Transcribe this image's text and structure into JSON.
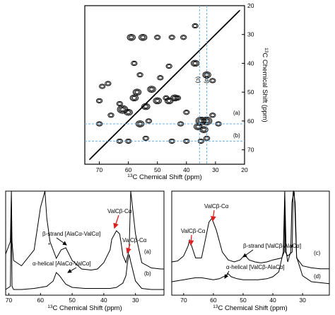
{
  "chart_data": [
    {
      "type": "heatmap",
      "xlabel": "13C Chemical Shift (ppm)",
      "ylabel": "13C Chemical Shift (ppm)",
      "xlim": [
        75,
        20
      ],
      "ylim": [
        20,
        75
      ],
      "x_ticks": [
        "70",
        "60",
        "50",
        "40",
        "30",
        "20"
      ],
      "y_ticks": [
        "20",
        "30",
        "40",
        "50",
        "60",
        "70"
      ],
      "slices": [
        {
          "label": "(a)",
          "axis": "y",
          "value": 61
        },
        {
          "label": "(b)",
          "axis": "y",
          "value": 67
        },
        {
          "label": "(c)",
          "axis": "x",
          "value": 35.5
        },
        {
          "label": "(d)",
          "axis": "x",
          "value": 33
        }
      ]
    },
    {
      "type": "line",
      "xlabel": "13C Chemical Shift (ppm)",
      "xlim": [
        71,
        21
      ],
      "x_ticks": [
        "70",
        "60",
        "50",
        "40",
        "30"
      ],
      "series": [
        {
          "name": "(a)",
          "x": [
            71,
            69.5,
            69.2,
            69,
            68.5,
            66,
            62,
            60,
            58.6,
            58,
            57,
            55,
            53.5,
            52,
            50,
            47,
            44,
            42,
            40,
            38,
            37.5,
            36,
            35,
            34.5,
            34,
            33,
            32,
            31.5,
            30,
            28,
            25,
            22,
            21
          ],
          "y": [
            0.26,
            0.38,
            0.9,
            0.38,
            0.2,
            0.15,
            0.3,
            0.7,
            0.9,
            0.6,
            0.38,
            0.22,
            0.3,
            0.32,
            0.2,
            0.12,
            0.11,
            0.12,
            0.18,
            0.3,
            0.4,
            0.48,
            0.45,
            0.36,
            0.25,
            0.18,
            0.3,
            0.9,
            0.45,
            0.18,
            0.13,
            0.12,
            0.12
          ]
        },
        {
          "name": "(b)",
          "x": [
            71,
            69.5,
            69.2,
            69,
            68.5,
            66,
            62,
            58,
            56,
            55,
            54,
            52,
            50,
            46,
            42,
            38,
            36,
            34,
            33,
            32.5,
            32,
            31.5,
            30,
            28,
            25,
            22,
            21
          ],
          "y": [
            0.02,
            0.05,
            0.85,
            0.05,
            0.02,
            0.02,
            0.03,
            0.05,
            0.1,
            0.18,
            0.15,
            0.07,
            0.04,
            0.03,
            0.03,
            0.03,
            0.04,
            0.08,
            0.15,
            0.28,
            0.35,
            0.28,
            0.1,
            0.03,
            0.02,
            0.02,
            0.02
          ]
        }
      ],
      "annotations": [
        {
          "text": "ValCβ-Cα",
          "x": 36.5,
          "y": 0.48,
          "arrow": "red"
        },
        {
          "text": "ValCβ-Cα",
          "x": 33,
          "y": 0.36,
          "arrow": "red"
        },
        {
          "text": "β-strand [AlaCα-ValCα]",
          "x": 54,
          "y": 0.3,
          "arrow": "black"
        },
        {
          "text": "*",
          "x": 57.5,
          "y": 0.4,
          "arrow": "none"
        },
        {
          "text": "α-helical [AlaCα-ValCα]",
          "x": 55,
          "y": 0.18,
          "arrow": "black"
        }
      ]
    },
    {
      "type": "line",
      "xlabel": "13C Chemical Shift (ppm)",
      "xlim": [
        74,
        21
      ],
      "x_ticks": [
        "70",
        "60",
        "50",
        "40",
        "30",
        "20"
      ],
      "series": [
        {
          "name": "(c)",
          "x": [
            74,
            72,
            70,
            68.5,
            68,
            67.5,
            66,
            64,
            63,
            61.5,
            60.5,
            59,
            57,
            55,
            53,
            51,
            49.5,
            48,
            46,
            44,
            42,
            40,
            37,
            36.2,
            36,
            35.8,
            35,
            33.5,
            33.2,
            33,
            32.8,
            32,
            30,
            27,
            24,
            21
          ],
          "y": [
            0.2,
            0.21,
            0.26,
            0.36,
            0.42,
            0.38,
            0.24,
            0.24,
            0.38,
            0.6,
            0.64,
            0.52,
            0.3,
            0.22,
            0.2,
            0.22,
            0.27,
            0.22,
            0.2,
            0.19,
            0.2,
            0.22,
            0.24,
            0.3,
            1.0,
            0.3,
            0.26,
            0.3,
            0.9,
            1.0,
            0.9,
            0.24,
            0.16,
            0.14,
            0.13,
            0.13
          ]
        },
        {
          "name": "(d)",
          "x": [
            74,
            72,
            70,
            68,
            66,
            64,
            62,
            60,
            58,
            56,
            55,
            54,
            52,
            50,
            48,
            45,
            42,
            40,
            38,
            36.5,
            36,
            35.5,
            35,
            34,
            33.6,
            33,
            32.5,
            32,
            30,
            27,
            24,
            21
          ],
          "y": [
            0.1,
            0.11,
            0.12,
            0.13,
            0.14,
            0.14,
            0.13,
            0.12,
            0.13,
            0.16,
            0.18,
            0.15,
            0.13,
            0.12,
            0.12,
            0.12,
            0.13,
            0.15,
            0.2,
            0.4,
            1.0,
            0.4,
            0.3,
            0.4,
            0.9,
            1.0,
            0.9,
            0.35,
            0.16,
            0.1,
            0.09,
            0.08
          ]
        }
      ],
      "annotations": [
        {
          "text": "ValCβ-Cα",
          "x": 67.5,
          "y": 0.42,
          "arrow": "red"
        },
        {
          "text": "ValCβ-Cα",
          "x": 61,
          "y": 0.64,
          "arrow": "red"
        },
        {
          "text": "β-strand [ValCβ-AlaCα]",
          "x": 50,
          "y": 0.26,
          "arrow": "black"
        },
        {
          "text": "α-helical [ValCβ-AlaCα]",
          "x": 56,
          "y": 0.17,
          "arrow": "black"
        }
      ]
    }
  ],
  "labels": {
    "top_xlabel_iso": "13",
    "top_xlabel_rest": "C Chemical Shift (ppm)",
    "top_ylabel_iso": "13",
    "top_ylabel_rest": "C Chemical Shift (ppm)",
    "left_xlabel_iso": "13",
    "left_xlabel_rest": "C Chemical Shift (ppm)",
    "right_xlabel_iso": "13",
    "right_xlabel_rest": "C Chemical Shift (ppm)",
    "slice_a": "(a)",
    "slice_b": "(b)",
    "slice_c": "(c)",
    "slice_d": "(d)",
    "left_trace_a": "(a)",
    "left_trace_b": "(b)",
    "right_trace_c": "(c)",
    "right_trace_d": "(d)",
    "ann_valcb_1": "ValCβ-Cα",
    "ann_valcb_2": "ValCβ-Cα",
    "ann_beta_left": "β-strand [AlaCα-ValCα]",
    "ann_alpha_left": "α-helical [AlaCα-ValCα]",
    "ann_star": "*",
    "ann_valcb_3": "ValCβ-Cα",
    "ann_valcb_4": "ValCβ-Cα",
    "ann_beta_right": "β-strand [ValCβ-AlaCα]",
    "ann_alpha_right": "α-helical [ValCβ-AlaCα]"
  },
  "colors": {
    "guide": "#6aaee0",
    "arrow_red": "#e02020",
    "contour": "#000000"
  }
}
